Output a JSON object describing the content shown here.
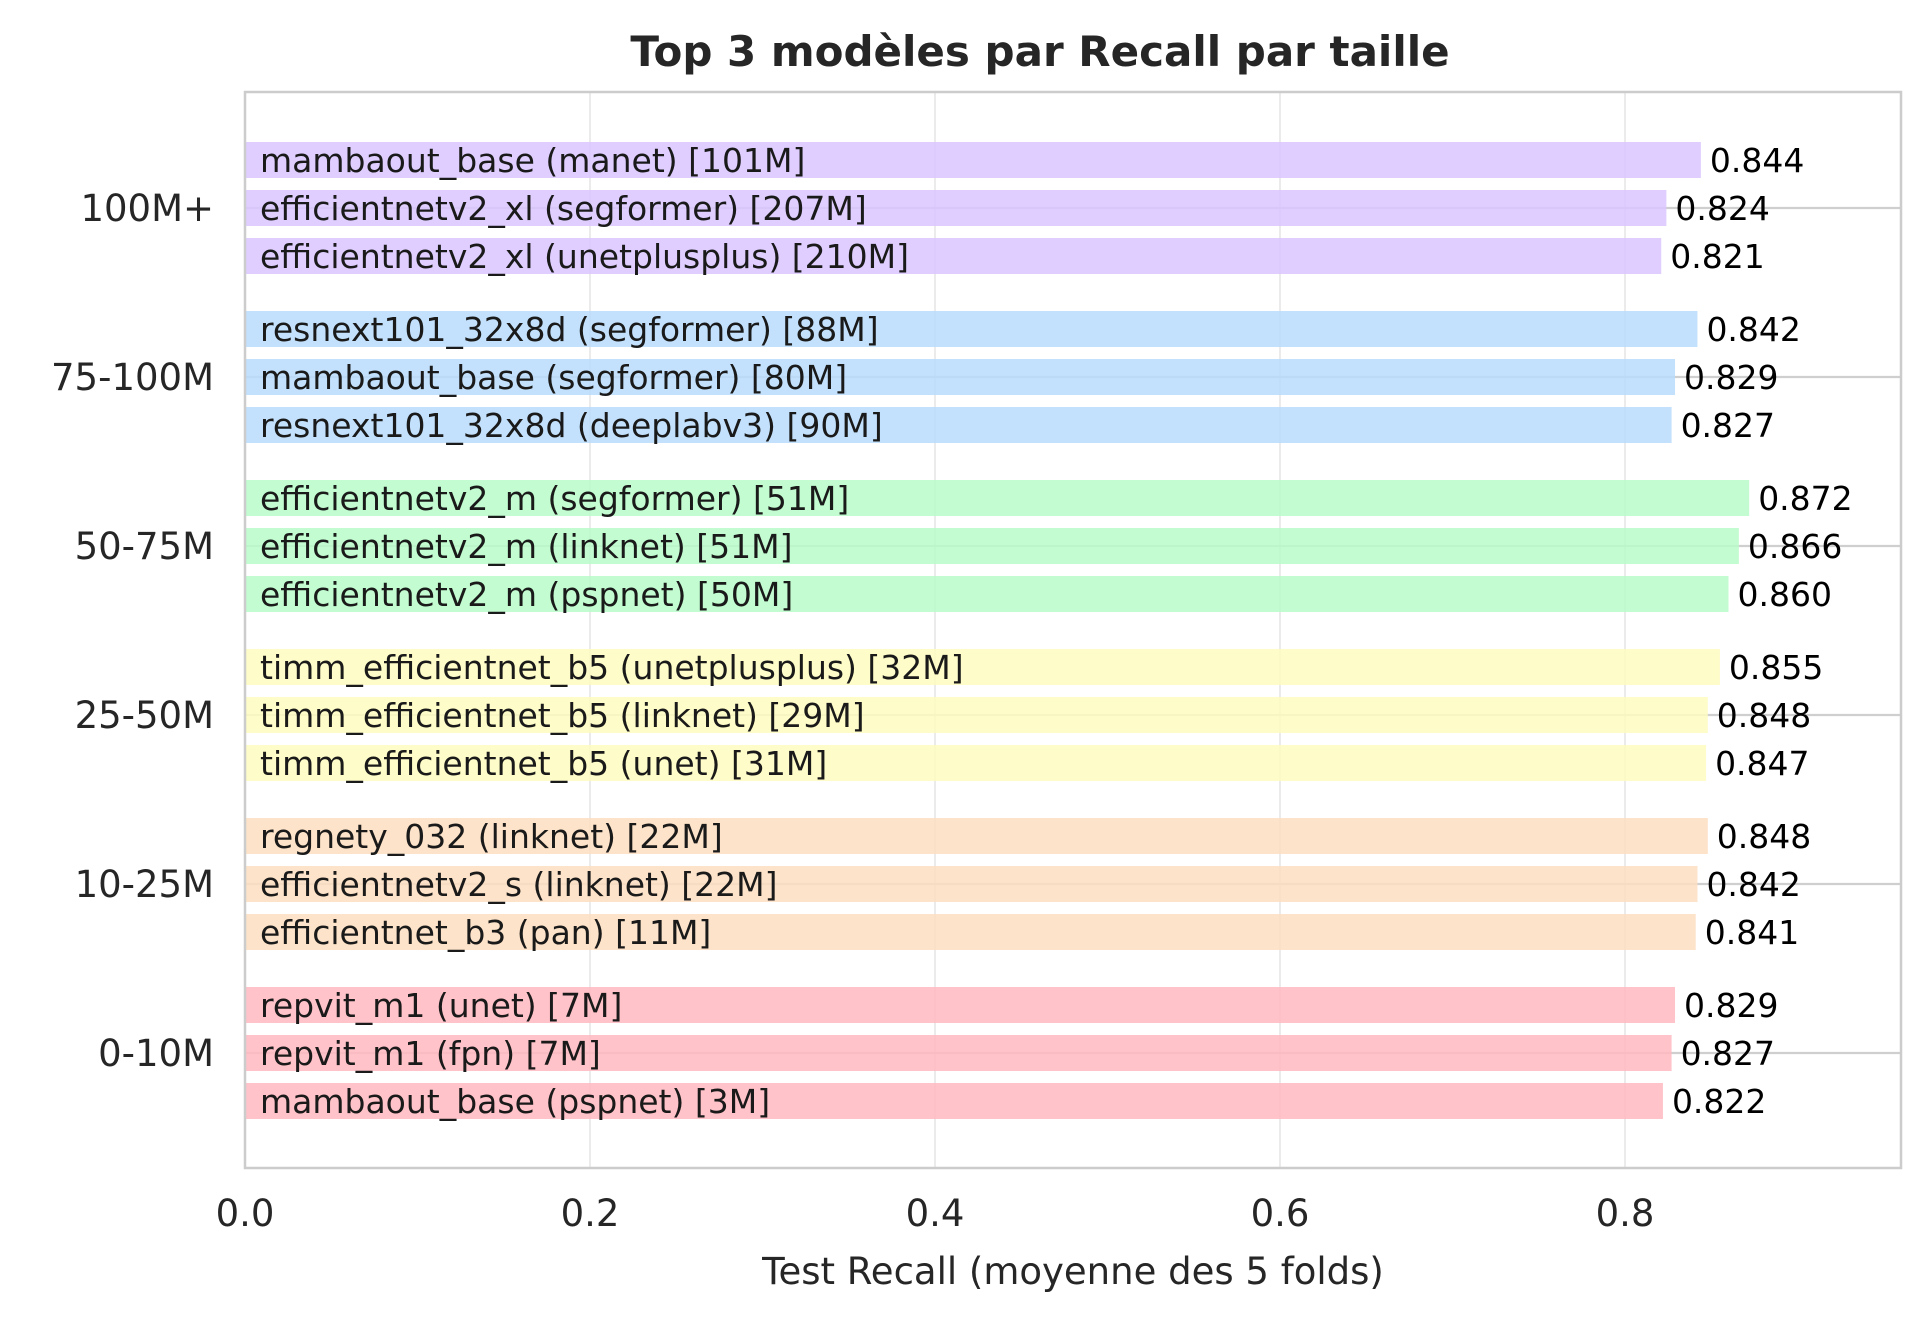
{
  "chart_data": {
    "type": "bar",
    "orientation": "horizontal",
    "title": "Top 3 modèles par Recall par taille",
    "xlabel": "Test Recall (moyenne des 5 folds)",
    "ylabel": "",
    "xlim": [
      0,
      0.96
    ],
    "xticks": [
      "0.0",
      "0.2",
      "0.4",
      "0.6",
      "0.8"
    ],
    "grid": true,
    "groups": [
      {
        "name": "100M+",
        "color": "#d9c6ff",
        "bars": [
          {
            "label": "mambaout_base (manet) [101M]",
            "value": 0.844,
            "value_label": "0.844"
          },
          {
            "label": "efficientnetv2_xl (segformer) [207M]",
            "value": 0.824,
            "value_label": "0.824"
          },
          {
            "label": "efficientnetv2_xl (unetplusplus) [210M]",
            "value": 0.821,
            "value_label": "0.821"
          }
        ]
      },
      {
        "name": "75-100M",
        "color": "#b8dcfb",
        "bars": [
          {
            "label": "resnext101_32x8d (segformer) [88M]",
            "value": 0.842,
            "value_label": "0.842"
          },
          {
            "label": "mambaout_base (segformer) [80M]",
            "value": 0.829,
            "value_label": "0.829"
          },
          {
            "label": "resnext101_32x8d (deeplabv3) [90M]",
            "value": 0.827,
            "value_label": "0.827"
          }
        ]
      },
      {
        "name": "50-75M",
        "color": "#b7fcc8",
        "bars": [
          {
            "label": "efficientnetv2_m (segformer) [51M]",
            "value": 0.872,
            "value_label": "0.872"
          },
          {
            "label": "efficientnetv2_m (linknet) [51M]",
            "value": 0.866,
            "value_label": "0.866"
          },
          {
            "label": "efficientnetv2_m (pspnet) [50M]",
            "value": 0.86,
            "value_label": "0.860"
          }
        ]
      },
      {
        "name": "25-50M",
        "color": "#fefcbe",
        "bars": [
          {
            "label": "timm_efficientnet_b5 (unetplusplus) [32M]",
            "value": 0.855,
            "value_label": "0.855"
          },
          {
            "label": "timm_efficientnet_b5 (linknet) [29M]",
            "value": 0.848,
            "value_label": "0.848"
          },
          {
            "label": "timm_efficientnet_b5 (unet) [31M]",
            "value": 0.847,
            "value_label": "0.847"
          }
        ]
      },
      {
        "name": "10-25M",
        "color": "#fddebf",
        "bars": [
          {
            "label": "regnety_032 (linknet) [22M]",
            "value": 0.848,
            "value_label": "0.848"
          },
          {
            "label": "efficientnetv2_s (linknet) [22M]",
            "value": 0.842,
            "value_label": "0.842"
          },
          {
            "label": "efficientnet_b3 (pan) [11M]",
            "value": 0.841,
            "value_label": "0.841"
          }
        ]
      },
      {
        "name": "0-10M",
        "color": "#ffb8c0",
        "bars": [
          {
            "label": "repvit_m1 (unet) [7M]",
            "value": 0.829,
            "value_label": "0.829"
          },
          {
            "label": "repvit_m1 (fpn) [7M]",
            "value": 0.827,
            "value_label": "0.827"
          },
          {
            "label": "mambaout_base (pspnet) [3M]",
            "value": 0.822,
            "value_label": "0.822"
          }
        ]
      }
    ]
  }
}
